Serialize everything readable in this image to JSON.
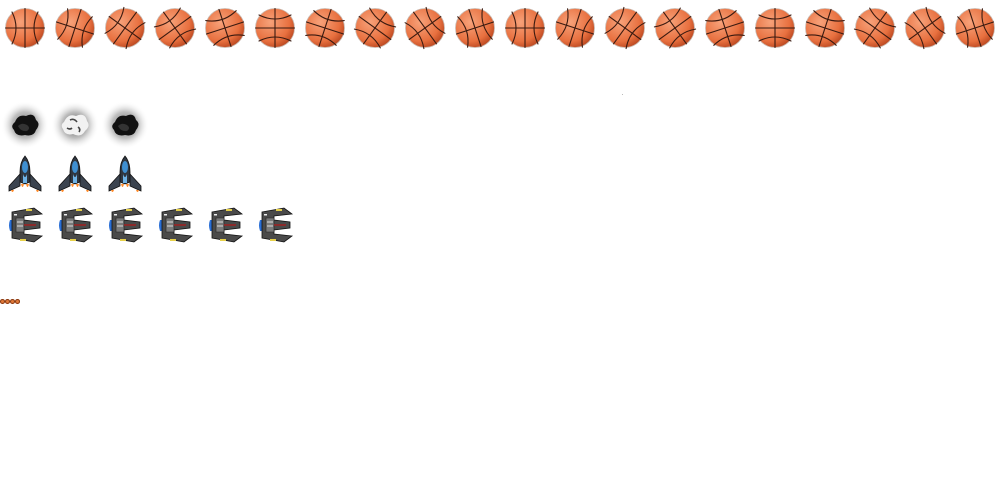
{
  "sprite_sheet": {
    "background": "#ffffff",
    "rows": [
      {
        "name": "basketball-spin",
        "icon": "basketball-icon",
        "frame_count": 20,
        "colors": {
          "fill": "#e8703f",
          "highlight": "#f7a27a",
          "seam": "#3a1a10"
        },
        "rotation_degrees": [
          0,
          18,
          36,
          54,
          72,
          90,
          108,
          126,
          144,
          162,
          180,
          198,
          216,
          234,
          252,
          270,
          288,
          306,
          324,
          342
        ]
      },
      {
        "name": "smoke-explosion",
        "icon": "smoke-cloud-icon",
        "frame_count": 3,
        "colors": {
          "core": "#111111",
          "halo": "#bfbfbf",
          "light": "#f2f2f2"
        },
        "variants": [
          "dark",
          "light",
          "dark"
        ]
      },
      {
        "name": "player-rocket-ship",
        "icon": "rocket-ship-icon",
        "frame_count": 3,
        "colors": {
          "hull": "#2f3640",
          "canopy": "#3f8fd0",
          "flame": "#ff8a2a"
        }
      },
      {
        "name": "enemy-fighter-ship",
        "icon": "enemy-fighter-icon",
        "frame_count": 6,
        "colors": {
          "hull": "#4a4a4a",
          "wing": "#7a7a7a",
          "glow": "#2a6fd6",
          "accent": "#e6d04a"
        }
      },
      {
        "name": "mini-basketball-row",
        "icon": "mini-basketball-icon",
        "frame_count": 4,
        "colors": {
          "fill": "#e07a3a",
          "edge": "#8a3a12"
        }
      }
    ]
  }
}
